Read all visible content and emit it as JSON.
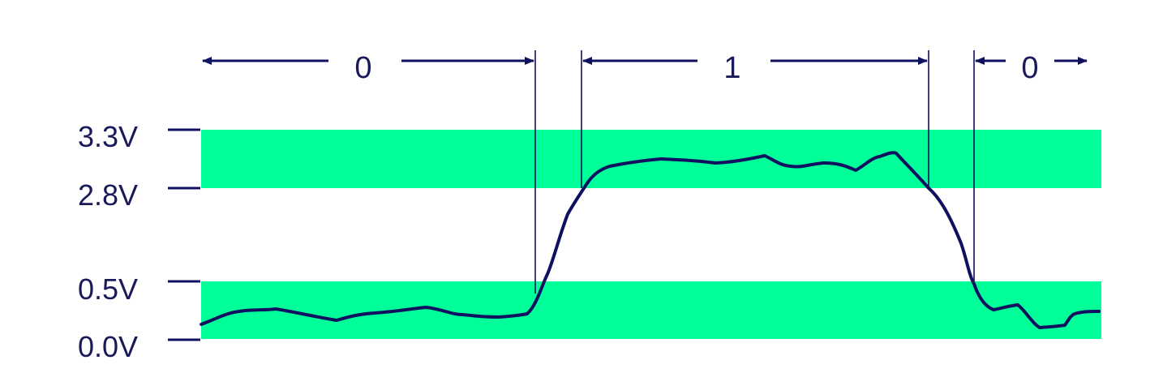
{
  "colors": {
    "band": "#00ff99",
    "ink": "#1a1a5a",
    "signal": "#101060"
  },
  "voltage_levels": [
    {
      "label": "3.3V",
      "value": 3.3
    },
    {
      "label": "2.8V",
      "value": 2.8
    },
    {
      "label": "0.5V",
      "value": 0.5
    },
    {
      "label": "0.0V",
      "value": 0.0
    }
  ],
  "bands": [
    {
      "name": "logic-high-band",
      "low": 2.8,
      "high": 3.3
    },
    {
      "name": "logic-low-band",
      "low": 0.0,
      "high": 0.5
    }
  ],
  "bits": [
    {
      "label": "0"
    },
    {
      "label": "1"
    },
    {
      "label": "0"
    }
  ]
}
